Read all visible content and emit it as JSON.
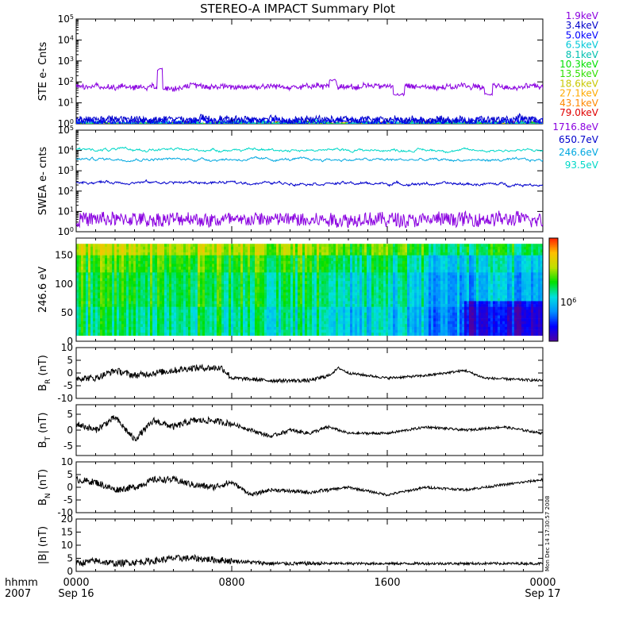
{
  "title": "STEREO-A IMPACT Summary Plot",
  "side_stamp": "Mon Dec 14 17:30:57 2008",
  "colors": {
    "frame": "#000000",
    "trace": "#000000",
    "purple": "#8a00e0",
    "darkblue": "#0000cc",
    "blue": "#0000ff",
    "cyan": "#00c8d8",
    "teal": "#00c0b0",
    "green": "#00e000",
    "lime": "#30e000",
    "yellow": "#c8c800",
    "orange": "#ff8800",
    "red": "#e00000"
  },
  "time_axis": {
    "row1_labels": [
      "hhmm",
      "0000",
      "0800",
      "1600",
      "0000"
    ],
    "row2_labels": [
      "2007",
      "Sep 16",
      "Sep 17"
    ],
    "range_hours": [
      0,
      24
    ],
    "major_ticks_hours": [
      0,
      8,
      16,
      24
    ]
  },
  "chart_data": [
    {
      "type": "line",
      "panel": "ste",
      "ylabel": "STE e- Cnts",
      "yscale": "log",
      "ylim": [
        1,
        100000
      ],
      "yticks": [
        "10^0",
        "10^1",
        "10^2",
        "10^3",
        "10^4",
        "10^5"
      ],
      "legend_placement": "right",
      "series": [
        {
          "name": "1.9keV",
          "color": "#8a00e0",
          "approx_level": 60,
          "noise_decades": 0.12,
          "features": [
            {
              "x_hours": 4.3,
              "width_hours": 0.25,
              "value": 400
            },
            {
              "x_hours": 13.2,
              "width_hours": 0.4,
              "value": 120
            },
            {
              "x_hours": 16.6,
              "width_hours": 0.6,
              "value": 25
            },
            {
              "x_hours": 21.2,
              "width_hours": 0.4,
              "value": 25
            }
          ]
        },
        {
          "name": "3.4keV",
          "color": "#0000cc",
          "approx_level": 1.6,
          "noise_decades": 0.15
        },
        {
          "name": "5.0keV",
          "color": "#0000ff",
          "approx_level": 1.3,
          "noise_decades": 0.15
        },
        {
          "name": "6.5keV",
          "color": "#00c8d8",
          "approx_level": 1.1,
          "noise_decades": 0.08
        },
        {
          "name": "8.1keV",
          "color": "#00c0b0",
          "approx_level": 1.05,
          "noise_decades": 0.05
        },
        {
          "name": "10.3keV",
          "color": "#00e000",
          "approx_level": 1.02,
          "noise_decades": 0.04
        },
        {
          "name": "13.5keV",
          "color": "#30e000",
          "approx_level": 1.0,
          "noise_decades": 0.03
        },
        {
          "name": "18.6keV",
          "color": "#c8c800",
          "approx_level": 1.0,
          "noise_decades": 0.02
        },
        {
          "name": "27.1keV",
          "color": "#ffaa00",
          "approx_level": 1.0,
          "noise_decades": 0.02
        },
        {
          "name": "43.1keV",
          "color": "#ff8800",
          "approx_level": 1.0,
          "noise_decades": 0.02
        },
        {
          "name": "79.0keV",
          "color": "#e00000",
          "approx_level": 1.0,
          "noise_decades": 0.02
        }
      ]
    },
    {
      "type": "line",
      "panel": "swea",
      "ylabel": "SWEA e- cnts",
      "yscale": "log",
      "ylim": [
        1,
        100000
      ],
      "yticks": [
        "10^0",
        "10^1",
        "10^2",
        "10^3",
        "10^4",
        "10^5"
      ],
      "legend_placement": "right",
      "series": [
        {
          "name": "1716.8eV",
          "color": "#8a00e0",
          "approx_level": 4,
          "noise_decades": 0.35
        },
        {
          "name": "650.7eV",
          "color": "#0000cc",
          "approx_level": 280,
          "end_level": 210,
          "noise_decades": 0.03
        },
        {
          "name": "246.6eV",
          "color": "#00a8e0",
          "approx_level": 3800,
          "end_level": 3300,
          "noise_decades": 0.02
        },
        {
          "name": "93.5eV",
          "color": "#00d8c8",
          "approx_level": 11000,
          "end_level": 10000,
          "noise_decades": 0.02
        }
      ]
    },
    {
      "type": "heatmap",
      "panel": "pad",
      "ylabel": "246.6 eV",
      "ylim": [
        0,
        180
      ],
      "yticks": [
        0,
        50,
        100,
        150
      ],
      "data_extent_y": [
        10,
        170
      ],
      "colorbar": {
        "label": "10^6",
        "placement": "right"
      },
      "colorscale": [
        "#5000a0",
        "#0000ff",
        "#0090ff",
        "#00e0e0",
        "#00e000",
        "#c0e000",
        "#ffc000",
        "#ff2000"
      ],
      "regions": [
        {
          "x_hours": [
            0,
            8
          ],
          "level": 0.55
        },
        {
          "x_hours": [
            8,
            13
          ],
          "level": 0.52
        },
        {
          "x_hours": [
            13,
            18
          ],
          "level": 0.43
        },
        {
          "x_hours": [
            18,
            24
          ],
          "level": 0.35
        }
      ]
    },
    {
      "type": "line",
      "panel": "br",
      "ylabel": "B_R (nT)",
      "ylim": [
        -10,
        10
      ],
      "yticks": [
        -10,
        -5,
        0,
        5,
        10
      ],
      "points": [
        [
          0,
          -2
        ],
        [
          1,
          -2
        ],
        [
          2,
          1
        ],
        [
          3,
          -1
        ],
        [
          4,
          0
        ],
        [
          5,
          1
        ],
        [
          6,
          2
        ],
        [
          7,
          2
        ],
        [
          7.5,
          2
        ],
        [
          8,
          -2
        ],
        [
          10,
          -3
        ],
        [
          12,
          -3
        ],
        [
          13,
          -1
        ],
        [
          13.5,
          2
        ],
        [
          14,
          0
        ],
        [
          16,
          -2
        ],
        [
          18,
          -1
        ],
        [
          20,
          1
        ],
        [
          21,
          -2
        ],
        [
          24,
          -3
        ]
      ]
    },
    {
      "type": "line",
      "panel": "bt",
      "ylabel": "B_T (nT)",
      "ylim": [
        -8,
        8
      ],
      "yticks": [
        -5,
        0,
        5
      ],
      "points": [
        [
          0,
          2
        ],
        [
          1,
          0
        ],
        [
          2,
          4
        ],
        [
          3,
          -3
        ],
        [
          4,
          3
        ],
        [
          5,
          1
        ],
        [
          6,
          3
        ],
        [
          7,
          3
        ],
        [
          8,
          2
        ],
        [
          9,
          0
        ],
        [
          10,
          -2
        ],
        [
          11,
          0
        ],
        [
          12,
          -1
        ],
        [
          13,
          1
        ],
        [
          14,
          -1
        ],
        [
          16,
          -1
        ],
        [
          18,
          1
        ],
        [
          20,
          0
        ],
        [
          22,
          1
        ],
        [
          24,
          -1
        ]
      ]
    },
    {
      "type": "line",
      "panel": "bn",
      "ylabel": "B_N (nT)",
      "ylim": [
        -10,
        10
      ],
      "yticks": [
        -10,
        -5,
        0,
        5,
        10
      ],
      "points": [
        [
          0,
          3
        ],
        [
          1,
          2
        ],
        [
          2,
          -1
        ],
        [
          3,
          0
        ],
        [
          4,
          3
        ],
        [
          5,
          3
        ],
        [
          6,
          1
        ],
        [
          7,
          0
        ],
        [
          8,
          2
        ],
        [
          9,
          -3
        ],
        [
          10,
          -1
        ],
        [
          12,
          -2
        ],
        [
          14,
          0
        ],
        [
          16,
          -3
        ],
        [
          18,
          0
        ],
        [
          20,
          -1
        ],
        [
          22,
          1
        ],
        [
          24,
          3
        ]
      ]
    },
    {
      "type": "line",
      "panel": "bmag",
      "ylabel": "|B| (nT)",
      "ylim": [
        0,
        20
      ],
      "yticks": [
        0,
        5,
        10,
        15,
        20
      ],
      "points": [
        [
          0,
          3
        ],
        [
          1,
          4
        ],
        [
          2,
          3
        ],
        [
          4,
          4
        ],
        [
          5,
          5
        ],
        [
          6,
          5
        ],
        [
          8,
          4
        ],
        [
          10,
          3
        ],
        [
          12,
          3
        ],
        [
          14,
          3
        ],
        [
          16,
          3
        ],
        [
          18,
          3
        ],
        [
          20,
          3
        ],
        [
          22,
          3
        ],
        [
          24,
          3
        ]
      ]
    }
  ]
}
